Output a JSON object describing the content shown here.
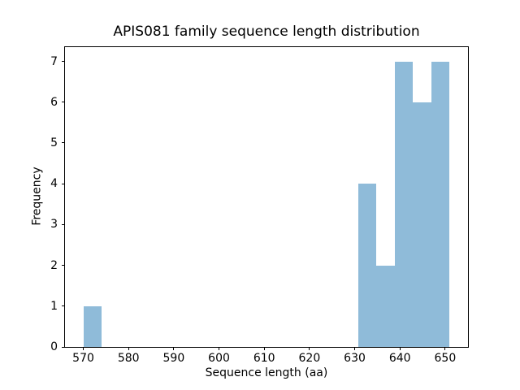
{
  "figure": {
    "background_color": "#ffffff",
    "spine_color": "#000000",
    "text_color": "#000000"
  },
  "chart_data": {
    "type": "bar",
    "subtype": "histogram",
    "title": "APIS081 family sequence length distribution",
    "xlabel": "Sequence length (aa)",
    "ylabel": "Frequency",
    "bar_color": "#8fbbd9",
    "bin_edges": [
      570,
      574.05,
      578.1,
      582.15,
      586.2,
      590.25,
      594.3,
      598.35,
      602.4,
      606.45,
      610.5,
      614.55,
      618.6,
      622.65,
      626.7,
      630.75,
      634.8,
      638.85,
      642.9,
      646.95,
      651
    ],
    "counts": [
      1,
      0,
      0,
      0,
      0,
      0,
      0,
      0,
      0,
      0,
      0,
      0,
      0,
      0,
      0,
      4,
      2,
      7,
      6,
      7
    ],
    "xlim": [
      565.95,
      655.05
    ],
    "ylim": [
      0,
      7.35
    ],
    "xticks": [
      570,
      580,
      590,
      600,
      610,
      620,
      630,
      640,
      650
    ],
    "yticks": [
      0,
      1,
      2,
      3,
      4,
      5,
      6,
      7
    ],
    "grid": false,
    "legend": null
  }
}
